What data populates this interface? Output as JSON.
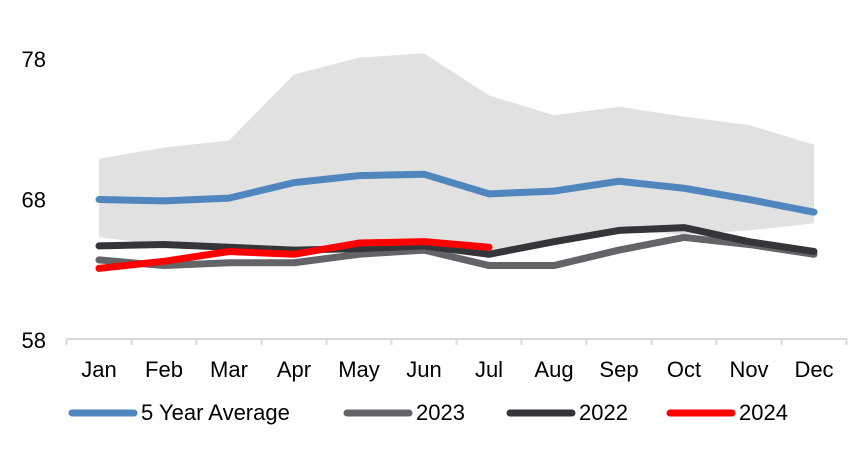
{
  "chart_data": {
    "type": "line",
    "title": "",
    "categories": [
      "Jan",
      "Feb",
      "Mar",
      "Apr",
      "May",
      "Jun",
      "Jul",
      "Aug",
      "Sep",
      "Oct",
      "Nov",
      "Dec"
    ],
    "y_ticks": [
      "78",
      "68",
      "58"
    ],
    "ylim": [
      58,
      80
    ],
    "grid": false,
    "legend_position": "bottom",
    "axis_color": "#D9D9D9",
    "text_color": "#000000",
    "band": {
      "color": "#E1E1E1",
      "top": [
        70.9,
        71.7,
        72.2,
        76.9,
        78.1,
        78.4,
        75.4,
        74.0,
        74.6,
        73.9,
        73.3,
        71.9
      ],
      "bottom": [
        65.3,
        64.8,
        64.7,
        64.3,
        64.6,
        64.8,
        64.3,
        65.1,
        65.8,
        65.5,
        65.8,
        66.3
      ]
    },
    "series": [
      {
        "name": "5 Year Average",
        "color": "#4E86BD",
        "values": [
          68.0,
          67.9,
          68.1,
          69.2,
          69.7,
          69.8,
          68.4,
          68.6,
          69.3,
          68.8,
          68.0,
          67.1
        ]
      },
      {
        "name": "2023",
        "color": "#626467",
        "values": [
          63.7,
          63.3,
          63.5,
          63.5,
          64.1,
          64.4,
          63.3,
          63.3,
          64.4,
          65.3,
          64.8,
          64.1
        ]
      },
      {
        "name": "2022",
        "color": "#333538",
        "values": [
          64.7,
          64.8,
          64.6,
          64.4,
          64.5,
          64.7,
          64.1,
          65.0,
          65.8,
          66.0,
          65.0,
          64.3
        ]
      },
      {
        "name": "2024",
        "color": "#FF0000",
        "values": [
          63.1,
          63.6,
          64.3,
          64.1,
          64.9,
          65.0,
          64.6
        ]
      }
    ]
  }
}
